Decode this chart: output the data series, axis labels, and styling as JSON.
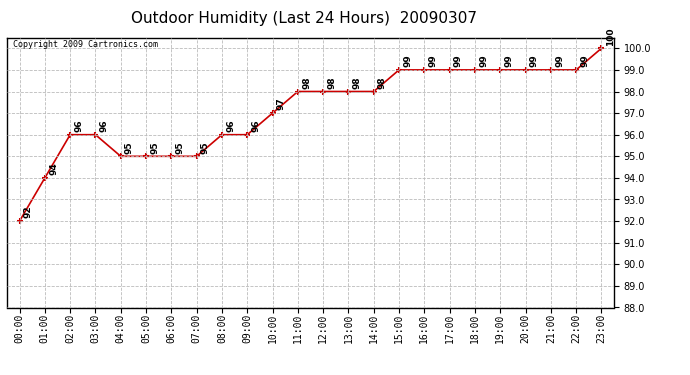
{
  "title": "Outdoor Humidity (Last 24 Hours)  20090307",
  "copyright_text": "Copyright 2009 Cartronics.com",
  "x_labels": [
    "00:00",
    "01:00",
    "02:00",
    "03:00",
    "04:00",
    "05:00",
    "06:00",
    "07:00",
    "08:00",
    "09:00",
    "10:00",
    "11:00",
    "12:00",
    "13:00",
    "14:00",
    "15:00",
    "16:00",
    "17:00",
    "18:00",
    "19:00",
    "20:00",
    "21:00",
    "22:00",
    "23:00"
  ],
  "y_values": [
    92,
    94,
    96,
    96,
    95,
    95,
    95,
    95,
    96,
    96,
    97,
    98,
    98,
    98,
    98,
    99,
    99,
    99,
    99,
    99,
    99,
    99,
    99,
    100
  ],
  "point_labels": [
    "92",
    "94",
    "96",
    "96",
    "95",
    "95",
    "95",
    "95",
    "96",
    "96",
    "97",
    "98",
    "98",
    "98",
    "98",
    "99",
    "99",
    "99",
    "99",
    "99",
    "99",
    "99",
    "99",
    "100"
  ],
  "ylim": [
    88.0,
    100.5
  ],
  "yticks": [
    88.0,
    89.0,
    90.0,
    91.0,
    92.0,
    93.0,
    94.0,
    95.0,
    96.0,
    97.0,
    98.0,
    99.0,
    100.0
  ],
  "line_color": "#cc0000",
  "marker_color": "#cc0000",
  "bg_color": "#ffffff",
  "grid_color": "#bbbbbb",
  "title_fontsize": 11,
  "label_fontsize": 7,
  "point_label_fontsize": 6.5
}
